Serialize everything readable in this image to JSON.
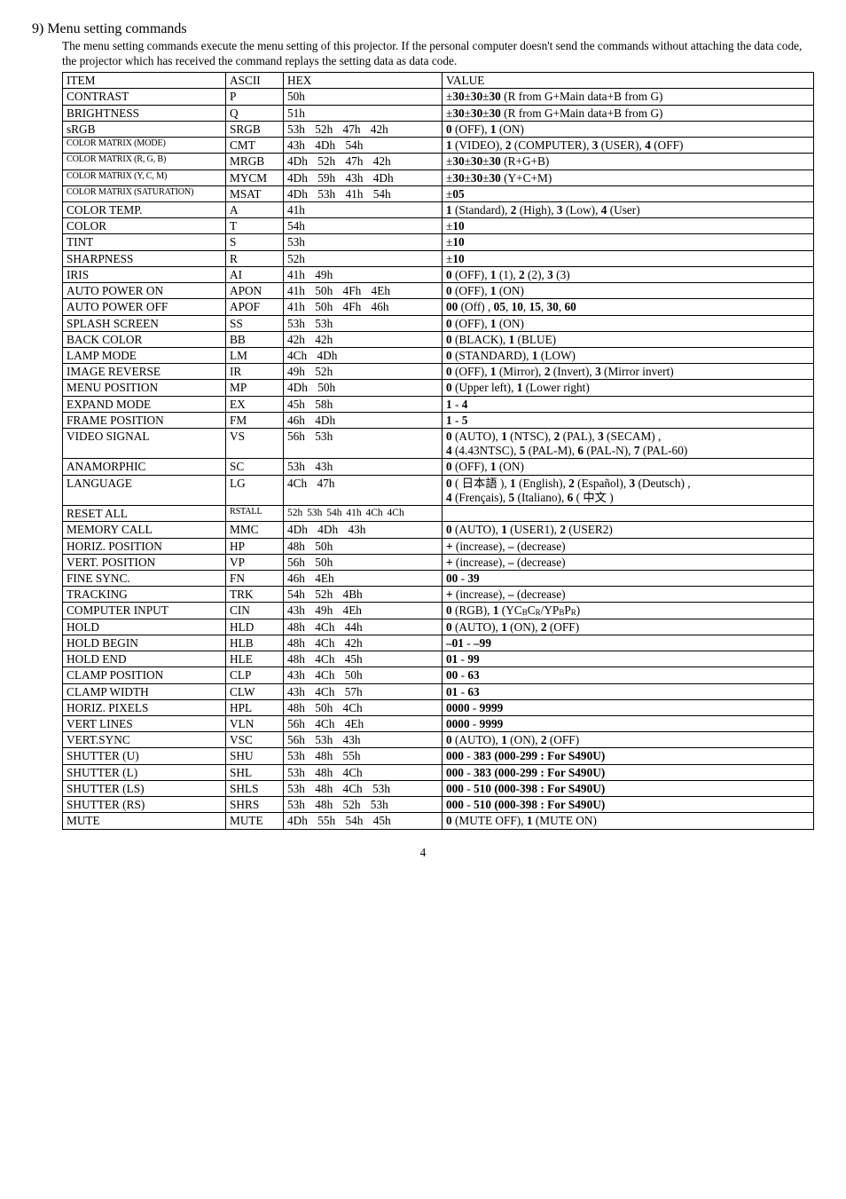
{
  "heading": "9) Menu setting commands",
  "intro": "The menu setting commands execute the menu setting of this projector. If the personal computer doesn't send the commands without attaching the data code, the projector which has received the command replays the setting data as data code.",
  "header": {
    "item": "ITEM",
    "ascii": "ASCII",
    "hex": "HEX",
    "value": "VALUE"
  },
  "rows": [
    {
      "item": "CONTRAST",
      "ascii": "P",
      "hex": "50h",
      "value": "±<b>30</b>±<b>30</b>±<b>30</b> (R from G+Main data+B from G)"
    },
    {
      "item": "BRIGHTNESS",
      "ascii": "Q",
      "hex": "51h",
      "value": "±<b>30</b>±<b>30</b>±<b>30</b> (R from G+Main data+B from G)"
    },
    {
      "item": "sRGB",
      "ascii": "SRGB",
      "hex": "53h 52h 47h 42h",
      "hexmulti": true,
      "value": "<b>0</b> (OFF), <b>1</b> (ON)"
    },
    {
      "item": "COLOR MATRIX (MODE)",
      "cond": true,
      "ascii": "CMT",
      "hex": "43h 4Dh 54h",
      "hexmulti": true,
      "value": "<b>1</b> (VIDEO), <b>2</b> (COMPUTER), <b>3</b> (USER), <b>4</b> (OFF)"
    },
    {
      "item": "COLOR MATRIX (R, G, B)",
      "cond": true,
      "ascii": "MRGB",
      "hex": "4Dh 52h 47h 42h",
      "hexmulti": true,
      "value": "±<b>30</b>±<b>30</b>±<b>30</b>  (R+G+B)"
    },
    {
      "item": "COLOR MATRIX (Y, C, M)",
      "cond": true,
      "ascii": "MYCM",
      "hex": "4Dh 59h 43h 4Dh",
      "hexmulti": true,
      "value": "±<b>30</b>±<b>30</b>±<b>30</b>  (Y+C+M)"
    },
    {
      "item": "COLOR MATRIX (SATURATION)",
      "cond": true,
      "ascii": "MSAT",
      "hex": "4Dh 53h 41h 54h",
      "hexmulti": true,
      "value": "±<b>05</b>"
    },
    {
      "item": "COLOR TEMP.",
      "ascii": "A",
      "hex": "41h",
      "value": "<b>1</b> (Standard), <b>2</b> (High), <b>3</b> (Low), <b>4</b> (User)"
    },
    {
      "item": "COLOR",
      "ascii": "T",
      "hex": "54h",
      "value": "±<b>10</b>"
    },
    {
      "item": "TINT",
      "ascii": "S",
      "hex": "53h",
      "value": "±<b>10</b>"
    },
    {
      "item": "SHARPNESS",
      "ascii": "R",
      "hex": "52h",
      "value": "±<b>10</b>"
    },
    {
      "item": "IRIS",
      "ascii": "AI",
      "hex": "41h 49h",
      "hexmulti": true,
      "value": "<b>0</b> (OFF), <b>1</b> (1), <b>2</b> (2), <b>3</b> (3)"
    },
    {
      "item": "AUTO POWER ON",
      "ascii": "APON",
      "hex": "41h 50h 4Fh 4Eh",
      "hexmulti": true,
      "value": "<b>0</b> (OFF), <b>1</b> (ON)"
    },
    {
      "item": "AUTO POWER OFF",
      "ascii": "APOF",
      "hex": "41h 50h 4Fh 46h",
      "hexmulti": true,
      "value": "<b>00</b> (Off) , <b>05</b>, <b>10</b>, <b>15</b>, <b>30</b>, <b>60</b>"
    },
    {
      "item": "SPLASH SCREEN",
      "ascii": "SS",
      "hex": "53h 53h",
      "hexmulti": true,
      "value": "<b>0</b> (OFF), <b>1</b> (ON)"
    },
    {
      "item": "BACK COLOR",
      "ascii": "BB",
      "hex": "42h 42h",
      "hexmulti": true,
      "value": "<b>0</b> (BLACK), <b>1</b> (BLUE)"
    },
    {
      "item": "LAMP MODE",
      "ascii": "LM",
      "hex": "4Ch 4Dh",
      "hexmulti": true,
      "value": "<b>0</b> (STANDARD), <b>1</b> (LOW)"
    },
    {
      "item": "IMAGE REVERSE",
      "ascii": "IR",
      "hex": "49h 52h",
      "hexmulti": true,
      "value": "<b>0</b> (OFF), <b>1</b> (Mirror), <b>2</b> (Invert), <b>3</b> (Mirror invert)"
    },
    {
      "item": "MENU POSITION",
      "ascii": "MP",
      "hex": "4Dh 50h",
      "hexmulti": true,
      "value": "<b>0</b> (Upper left), <b>1</b> (Lower right)"
    },
    {
      "item": "EXPAND MODE",
      "ascii": "EX",
      "hex": "45h 58h",
      "hexmulti": true,
      "value": "<b>1</b> - <b>4</b>"
    },
    {
      "item": "FRAME POSITION",
      "ascii": "FM",
      "hex": "46h 4Dh",
      "hexmulti": true,
      "value": "<b>1</b> - <b>5</b>"
    },
    {
      "item": "VIDEO SIGNAL",
      "ascii": "VS",
      "hex": "56h 53h",
      "hexmulti": true,
      "value": "<b>0</b> (AUTO), <b>1</b> (NTSC), <b>2</b> (PAL), <b>3</b> (SECAM) ,<br><b>4</b> (4.43NTSC),  <b>5</b> (PAL-M), <b>6</b> (PAL-N), <b>7</b> (PAL-60)"
    },
    {
      "item": "ANAMORPHIC",
      "ascii": "SC",
      "hex": "53h 43h",
      "hexmulti": true,
      "value": "<b>0</b> (OFF), <b>1</b> (ON)"
    },
    {
      "item": "LANGUAGE",
      "ascii": "LG",
      "hex": "4Ch 47h",
      "hexmulti": true,
      "value": "<b>0</b> ( 日本語 ), <b>1</b> (English), <b>2</b> (Español), <b>3</b> (Deutsch) ,<br><b>4</b> (Frençais),  <b>5</b> (Italiano), <b>6</b> ( 中文 )"
    },
    {
      "item": "RESET ALL",
      "ascii": "RSTALL",
      "asciicond": true,
      "hex": "52h 53h 54h 41h 4Ch 4Ch",
      "hextight": true,
      "value": ""
    },
    {
      "item": "MEMORY CALL",
      "ascii": "MMC",
      "hex": "4Dh 4Dh 43h",
      "hexmulti": true,
      "value": "<b>0</b> (AUTO), <b>1</b> (USER1), <b>2</b> (USER2)"
    },
    {
      "item": "HORIZ. POSITION",
      "ascii": "HP",
      "hex": "48h 50h",
      "hexmulti": true,
      "value": "<b>+</b> (increase), <b>–</b> (decrease)"
    },
    {
      "item": "VERT. POSITION",
      "ascii": "VP",
      "hex": "56h 50h",
      "hexmulti": true,
      "value": "<b>+</b> (increase), <b>–</b> (decrease)"
    },
    {
      "item": "FINE SYNC.",
      "ascii": "FN",
      "hex": "46h 4Eh",
      "hexmulti": true,
      "value": "<b>00</b> - <b>39</b>"
    },
    {
      "item": "TRACKING",
      "ascii": "TRK",
      "hex": "54h 52h 4Bh",
      "hexmulti": true,
      "value": "<b>+</b> (increase), <b>–</b> (decrease)"
    },
    {
      "item": "COMPUTER INPUT",
      "ascii": "CIN",
      "hex": "43h 49h 4Eh",
      "hexmulti": true,
      "value": "<b>0</b> (RGB), <b>1</b> (YC<span class=\"sub\">B</span>C<span class=\"sub\">R</span>/YP<span class=\"sub\">B</span>P<span class=\"sub\">R</span>)"
    },
    {
      "item": "HOLD",
      "ascii": "HLD",
      "hex": "48h 4Ch 44h",
      "hexmulti": true,
      "value": "<b>0</b> (AUTO), <b>1</b> (ON), <b>2</b> (OFF)"
    },
    {
      "item": "HOLD BEGIN",
      "ascii": "HLB",
      "hex": "48h 4Ch 42h",
      "hexmulti": true,
      "value": "<b>–01</b> - <b>–99</b>"
    },
    {
      "item": "HOLD END",
      "ascii": "HLE",
      "hex": "48h 4Ch 45h",
      "hexmulti": true,
      "value": "<b>01</b> - <b>99</b>"
    },
    {
      "item": "CLAMP POSITION",
      "ascii": "CLP",
      "hex": "43h 4Ch 50h",
      "hexmulti": true,
      "value": "<b>00</b> - <b>63</b>"
    },
    {
      "item": "CLAMP WIDTH",
      "ascii": "CLW",
      "hex": "43h 4Ch 57h",
      "hexmulti": true,
      "value": "<b>01</b> - <b>63</b>"
    },
    {
      "item": "HORIZ. PIXELS",
      "ascii": "HPL",
      "hex": "48h 50h 4Ch",
      "hexmulti": true,
      "value": "<b>0000</b> - <b>9999</b>"
    },
    {
      "item": "VERT LINES",
      "ascii": "VLN",
      "hex": "56h 4Ch 4Eh",
      "hexmulti": true,
      "value": "<b>0000</b> - <b>9999</b>"
    },
    {
      "item": "VERT.SYNC",
      "ascii": "VSC",
      "hex": "56h 53h 43h",
      "hexmulti": true,
      "value": "<b>0</b> (AUTO), <b>1</b> (ON), <b>2</b> (OFF)"
    },
    {
      "item": "SHUTTER (U)",
      "ascii": "SHU",
      "hex": "53h 48h 55h",
      "hexmulti": true,
      "value": "<b>000</b> - <b>383</b> <b>(000-299 : For S490U)</b>"
    },
    {
      "item": "SHUTTER (L)",
      "ascii": "SHL",
      "hex": "53h 48h 4Ch",
      "hexmulti": true,
      "value": "<b>000</b> - <b>383</b> <b>(000-299 : For S490U)</b>"
    },
    {
      "item": "SHUTTER (LS)",
      "ascii": "SHLS",
      "hex": "53h 48h 4Ch 53h",
      "hexmulti": true,
      "value": "<b>000</b> - <b>510</b> <b>(000-398 : For S490U)</b>"
    },
    {
      "item": "SHUTTER (RS)",
      "ascii": "SHRS",
      "hex": "53h 48h 52h 53h",
      "hexmulti": true,
      "value": "<b>000</b> - <b>510</b> <b>(000-398 : For S490U)</b>"
    },
    {
      "item": "MUTE",
      "ascii": "MUTE",
      "hex": "4Dh 55h 54h 45h",
      "hexmulti": true,
      "value": "<b>0</b> (MUTE OFF), <b>1</b> (MUTE ON)"
    }
  ],
  "page_number": "4"
}
